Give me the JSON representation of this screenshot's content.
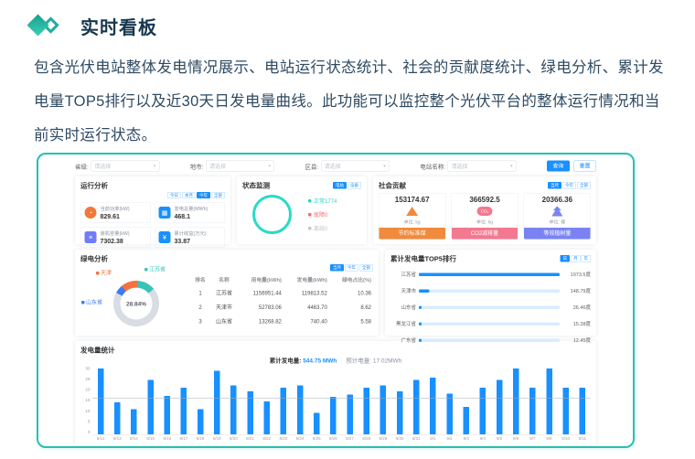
{
  "page": {
    "heading": "实时看板",
    "description": "包含光伏电站整体发电情况展示、电站运行状态统计、社会的贡献度统计、绿电分析、累计发电量TOP5排行以及近30天日发电量曲线。此功能可以监控整个光伏平台的整体运行情况和当前实时运行状态。"
  },
  "colors": {
    "accent_teal": "#29c0b1",
    "primary_blue": "#1890ff",
    "heading_text": "#17374f"
  },
  "dashboard": {
    "filters": {
      "fields": [
        {
          "label": "省级:",
          "value": "请选择"
        },
        {
          "label": "地市:",
          "value": "请选择"
        },
        {
          "label": "区县:",
          "value": "请选择"
        },
        {
          "label": "电站名称:",
          "value": "请选择"
        }
      ],
      "search_label": "查询",
      "reset_label": "重置"
    },
    "run_analysis": {
      "title": "运行分析",
      "period_tabs": [
        "今日",
        "本月",
        "今年",
        "全部"
      ],
      "cards": [
        {
          "label": "当前功率(kW)",
          "value": "829.61",
          "icon": "power-icon",
          "glyph": "◔",
          "color": "#f2783c"
        },
        {
          "label": "发电总量(MWh)",
          "value": "468.1",
          "icon": "calendar-icon",
          "glyph": "▦",
          "color": "#1890ff"
        },
        {
          "label": "装机容量(kW)",
          "value": "7302.38",
          "icon": "database-icon",
          "glyph": "≡",
          "color": "#6f7bf7"
        },
        {
          "label": "累计收益(万元)",
          "value": "33.87",
          "icon": "income-icon",
          "glyph": "¥",
          "color": "#1890ff"
        }
      ]
    },
    "status_monitor": {
      "title": "状态监测",
      "tabs": [
        "电站",
        "设备"
      ],
      "legend": [
        {
          "label": "正常",
          "value": "1774",
          "color": "#2fd3c5"
        },
        {
          "label": "故障",
          "value": "0",
          "color": "#f56c6c"
        },
        {
          "label": "离线",
          "value": "0",
          "color": "#c0c4cc"
        }
      ]
    },
    "social_contribution": {
      "title": "社会贡献",
      "tabs": [
        "当月",
        "今年",
        "全部"
      ],
      "cards": [
        {
          "value": "153174.67",
          "unit": "单位: kg",
          "button": "节约标准煤",
          "color": "#f08a3c",
          "icon": "coal-icon",
          "icon_text": ""
        },
        {
          "value": "366592.5",
          "unit": "单位: kg",
          "button": "CO2减排量",
          "color": "#f2798f",
          "icon": "co2-cloud-icon",
          "icon_text": "CO₂"
        },
        {
          "value": "20366.36",
          "unit": "单位: 棵",
          "button": "等效植树量",
          "color": "#7b83f2",
          "icon": "tree-icon",
          "icon_text": ""
        }
      ]
    },
    "green_power": {
      "title": "绿电分析",
      "tabs": [
        "当月",
        "今年",
        "全部"
      ],
      "legend": [
        {
          "label": "天津",
          "color": "#f5713d"
        },
        {
          "label": "江苏省",
          "color": "#38c3b9"
        },
        {
          "label": "山东省",
          "color": "#3e7bf0"
        }
      ],
      "table": {
        "headers": [
          "排名",
          "名称",
          "用电量(kWh)",
          "发电量(kWh)",
          "绿电占比(%)"
        ],
        "rows": [
          [
            "1",
            "江苏省",
            "1156951.44",
            "119813.52",
            "10.36"
          ],
          [
            "2",
            "天津市",
            "52783.06",
            "4463.70",
            "8.62"
          ],
          [
            "3",
            "山东省",
            "13268.82",
            "740.40",
            "5.58"
          ]
        ]
      }
    },
    "top5": {
      "title": "累计发电量TOP5排行",
      "tabs": [
        "日",
        "月",
        "年"
      ]
    },
    "daily": {
      "title": "发电量统计",
      "total_label": "累计发电量:",
      "total_value": "544.75 MWh",
      "forecast_label": "预计电量:",
      "forecast_value": "17.02MWh"
    }
  },
  "chart_data": [
    {
      "id": "status-donut",
      "type": "pie",
      "title": "状态监测",
      "labels": [
        "正常",
        "故障",
        "离线"
      ],
      "values": [
        1774,
        0,
        0
      ],
      "colors": [
        "#2bd9c7",
        "#f56c6c",
        "#c0c4cc"
      ],
      "legend_position": "right"
    },
    {
      "id": "green-power-donut",
      "type": "pie",
      "title": "绿电分析",
      "center_label": "28.84%",
      "slices": [
        {
          "label": "天津",
          "pct": 12,
          "color": "#f5713d"
        },
        {
          "label": "江苏省",
          "pct": 13,
          "color": "#38c3b9"
        },
        {
          "label": "",
          "pct": 69,
          "color": "#d8dce3"
        },
        {
          "label": "山东省",
          "pct": 6,
          "color": "#3e7bf0"
        }
      ]
    },
    {
      "id": "top5-cumulative",
      "type": "bar",
      "orientation": "horizontal",
      "title": "累计发电量TOP5排行",
      "categories": [
        "江苏省",
        "天津市",
        "山东省",
        "黑龙江省",
        "广东省"
      ],
      "values": [
        1973.5,
        148.79,
        26.46,
        15.38,
        12.45
      ],
      "value_labels": [
        "1973.5度",
        "148.79度",
        "26.46度",
        "15.38度",
        "12.45度"
      ],
      "bar_color": "#1890ff",
      "track_color": "#d9ecff"
    },
    {
      "id": "daily-generation",
      "type": "bar",
      "title": "发电量统计",
      "x": [
        "8/12",
        "8/13",
        "8/14",
        "8/15",
        "8/16",
        "8/17",
        "8/18",
        "8/19",
        "8/20",
        "8/21",
        "8/22",
        "8/23",
        "8/24",
        "8/25",
        "8/26",
        "8/27",
        "8/28",
        "8/29",
        "8/30",
        "8/31",
        "9/1",
        "9/2",
        "9/3",
        "9/4",
        "9/5",
        "9/6",
        "9/7",
        "9/8",
        "9/10",
        "9/11"
      ],
      "values": [
        29,
        14,
        11,
        24,
        17,
        20.5,
        11,
        28,
        21.5,
        19,
        14.5,
        20.5,
        21.5,
        9.5,
        16.5,
        17.5,
        20.5,
        21.5,
        19,
        24,
        25,
        18,
        12,
        20.5,
        24,
        29,
        20.5,
        29,
        20.5,
        20.5
      ],
      "ylim": [
        0,
        30
      ],
      "yticks": [
        0,
        5,
        10,
        15,
        20,
        25,
        30
      ],
      "avg_line": 16,
      "bar_color": "#1890ff",
      "grid": false
    }
  ]
}
